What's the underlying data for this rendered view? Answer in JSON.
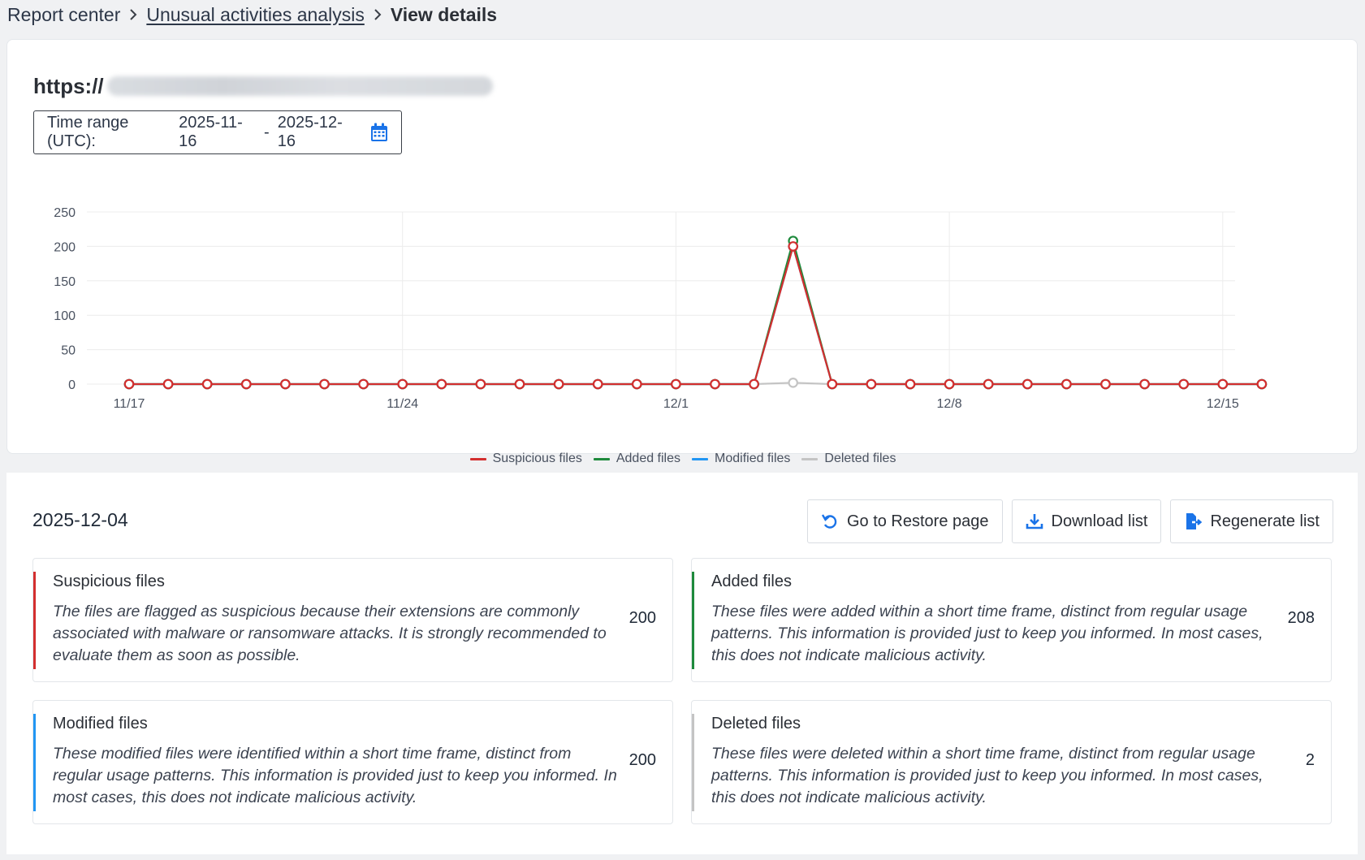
{
  "breadcrumb": {
    "root": "Report center",
    "parent": "Unusual activities analysis",
    "current": "View details"
  },
  "site": {
    "url_prefix": "https://"
  },
  "time_range": {
    "label": "Time range (UTC):",
    "start": "2025-11-16",
    "separator": "-",
    "end": "2025-12-16"
  },
  "colors": {
    "suspicious": "#d32f2f",
    "added": "#1e8a3c",
    "modified": "#2196f3",
    "deleted": "#c4c4c4",
    "accent": "#1a73e8"
  },
  "chart_data": {
    "type": "line",
    "y_ticks": [
      "250",
      "200",
      "150",
      "100",
      "50",
      "0"
    ],
    "ylim": [
      0,
      250
    ],
    "x_tick_labels": [
      "11/17",
      "11/24",
      "12/1",
      "12/8",
      "12/15"
    ],
    "x": [
      "11/17",
      "11/18",
      "11/19",
      "11/20",
      "11/21",
      "11/22",
      "11/23",
      "11/24",
      "11/25",
      "11/26",
      "11/27",
      "11/28",
      "11/29",
      "11/30",
      "12/1",
      "12/2",
      "12/3",
      "12/4",
      "12/5",
      "12/6",
      "12/7",
      "12/8",
      "12/9",
      "12/10",
      "12/11",
      "12/12",
      "12/13",
      "12/14",
      "12/15",
      "12/16"
    ],
    "series": [
      {
        "name": "Suspicious files",
        "color": "#d32f2f",
        "values": [
          0,
          0,
          0,
          0,
          0,
          0,
          0,
          0,
          0,
          0,
          0,
          0,
          0,
          0,
          0,
          0,
          0,
          200,
          0,
          0,
          0,
          0,
          0,
          0,
          0,
          0,
          0,
          0,
          0,
          0
        ]
      },
      {
        "name": "Added files",
        "color": "#1e8a3c",
        "values": [
          0,
          0,
          0,
          0,
          0,
          0,
          0,
          0,
          0,
          0,
          0,
          0,
          0,
          0,
          0,
          0,
          0,
          208,
          0,
          0,
          0,
          0,
          0,
          0,
          0,
          0,
          0,
          0,
          0,
          0
        ]
      },
      {
        "name": "Modified files",
        "color": "#2196f3",
        "values": [
          0,
          0,
          0,
          0,
          0,
          0,
          0,
          0,
          0,
          0,
          0,
          0,
          0,
          0,
          0,
          0,
          0,
          200,
          0,
          0,
          0,
          0,
          0,
          0,
          0,
          0,
          0,
          0,
          0,
          0
        ]
      },
      {
        "name": "Deleted files",
        "color": "#c4c4c4",
        "values": [
          0,
          0,
          0,
          0,
          0,
          0,
          0,
          0,
          0,
          0,
          0,
          0,
          0,
          0,
          0,
          0,
          0,
          2,
          0,
          0,
          0,
          0,
          0,
          0,
          0,
          0,
          0,
          0,
          0,
          0
        ]
      }
    ],
    "grid": true,
    "legend": "bottom-center"
  },
  "details": {
    "date": "2025-12-04",
    "buttons": {
      "restore": "Go to Restore page",
      "download": "Download list",
      "regenerate": "Regenerate list"
    },
    "cards": [
      {
        "title": "Suspicious files",
        "description": "The files are flagged as suspicious because their extensions are commonly associated with malware or ransomware attacks. It is strongly recommended to evaluate them as soon as possible.",
        "count": "200",
        "color": "#d32f2f"
      },
      {
        "title": "Added files",
        "description": "These files were added within a short time frame, distinct from regular usage patterns. This information is provided just to keep you informed. In most cases, this does not indicate malicious activity.",
        "count": "208",
        "color": "#1e8a3c"
      },
      {
        "title": "Modified files",
        "description": "These modified files were identified within a short time frame, distinct from regular usage patterns. This information is provided just to keep you informed. In most cases, this does not indicate malicious activity.",
        "count": "200",
        "color": "#2196f3"
      },
      {
        "title": "Deleted files",
        "description": "These files were deleted within a short time frame, distinct from regular usage patterns. This information is provided just to keep you informed. In most cases, this does not indicate malicious activity.",
        "count": "2",
        "color": "#c4c4c4"
      }
    ]
  }
}
